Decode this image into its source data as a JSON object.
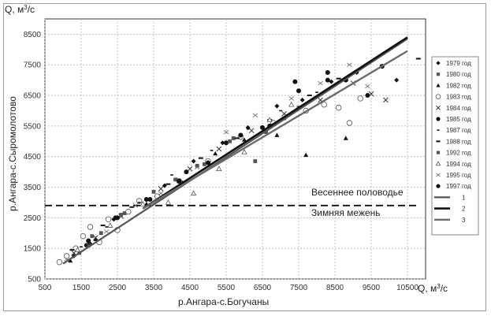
{
  "chart_data": {
    "type": "scatter",
    "ylabel_top": "Q, м³/с",
    "xlabel_right": "Q, м³/с",
    "ylabel_side": "р.Ангара-с.Сыромолотово",
    "xlabel_bottom": "р.Ангара-с.Богучаны",
    "xlim": [
      500,
      11000
    ],
    "ylim": [
      500,
      9000
    ],
    "x_ticks": [
      "500",
      "1500",
      "2500",
      "3500",
      "4500",
      "5500",
      "6500",
      "7500",
      "8500",
      "9500",
      "10500"
    ],
    "y_ticks": [
      "500",
      "1500",
      "2500",
      "3500",
      "4500",
      "5500",
      "6500",
      "7500",
      "8500"
    ],
    "threshold": {
      "y": 2900,
      "label_above": "Весеннее половодье",
      "label_below": "Зимняя межень"
    },
    "grid": "dashed",
    "legend_position": "right",
    "series": [
      {
        "name": "1979 год",
        "marker": "diamond-filled",
        "x": [
          1300,
          1750,
          2400,
          3800,
          4600,
          5400,
          6100,
          6900,
          7600,
          8400,
          9100,
          10200
        ],
        "y": [
          1250,
          1650,
          2450,
          3550,
          4350,
          4950,
          5450,
          6150,
          6350,
          6950,
          7250,
          7000
        ]
      },
      {
        "name": "1980 год",
        "marker": "square-filled",
        "x": [
          1450,
          2050,
          2700,
          4100,
          4900,
          5700,
          6300,
          7100
        ],
        "y": [
          1350,
          2000,
          2650,
          3750,
          4250,
          5100,
          4350,
          5750
        ]
      },
      {
        "name": "1982 год",
        "marker": "triangle-filled",
        "x": [
          1200,
          1900,
          3300,
          4300,
          5200,
          6000,
          6900,
          7700,
          8800
        ],
        "y": [
          1100,
          1800,
          2950,
          3650,
          4600,
          5050,
          5200,
          4550,
          5100
        ]
      },
      {
        "name": "1983 год",
        "marker": "circle-open",
        "x": [
          900,
          1100,
          1350,
          1550,
          1750,
          2000,
          2250,
          2500,
          2800,
          3100,
          3600,
          4200,
          5000,
          5900,
          6800,
          7700,
          8200,
          8600,
          8900,
          9200
        ],
        "y": [
          1050,
          1250,
          1500,
          1900,
          2200,
          1700,
          2450,
          2100,
          2700,
          3050,
          3200,
          3700,
          4350,
          5150,
          5600,
          6000,
          6200,
          6100,
          5600,
          6400
        ]
      },
      {
        "name": "1984 год",
        "marker": "cross",
        "x": [
          1300,
          1900,
          2600,
          3700,
          4500,
          5300,
          6200,
          7100,
          8100,
          9000,
          9500,
          9900
        ],
        "y": [
          1350,
          1850,
          2550,
          3450,
          4100,
          4750,
          5350,
          5900,
          6350,
          6900,
          6550,
          6350
        ]
      },
      {
        "name": "1985 год",
        "marker": "circle-filled",
        "x": [
          1650,
          2450,
          3400,
          4400,
          5500,
          6500,
          7400,
          8300,
          8800,
          9400,
          9800
        ],
        "y": [
          1600,
          2500,
          3100,
          4000,
          4950,
          5450,
          6950,
          7250,
          7000,
          6500,
          7450
        ]
      },
      {
        "name": "1987 год",
        "marker": "dash-small",
        "x": [
          1500,
          2200,
          3100,
          4000,
          5100,
          6100,
          7000,
          8000
        ],
        "y": [
          1550,
          2200,
          3000,
          3900,
          4700,
          5400,
          6000,
          6600
        ]
      },
      {
        "name": "1988 год",
        "marker": "dash",
        "x": [
          1250,
          2100,
          2900,
          3900,
          4800,
          5800,
          6700,
          7800,
          8600,
          10800
        ],
        "y": [
          1450,
          2250,
          2850,
          3600,
          4450,
          5100,
          5700,
          6500,
          7050,
          7700
        ]
      },
      {
        "name": "1992 год",
        "marker": "square-filled",
        "x": [
          1800,
          2600,
          3500,
          4700,
          5600,
          6600,
          7500
        ],
        "y": [
          1900,
          2600,
          3350,
          4200,
          5000,
          5300,
          6100
        ]
      },
      {
        "name": "1994 год",
        "marker": "triangle-open",
        "x": [
          1400,
          2300,
          3200,
          3900,
          4600,
          5300,
          6000,
          6700,
          7300
        ],
        "y": [
          1450,
          2250,
          2950,
          3000,
          3300,
          4100,
          4650,
          5700,
          6200
        ]
      },
      {
        "name": "1995 год",
        "marker": "x",
        "x": [
          1100,
          1700,
          2200,
          3000,
          3700,
          4700,
          5500,
          6300,
          7300,
          8100,
          8900,
          9400
        ],
        "y": [
          1150,
          1600,
          2050,
          2900,
          3300,
          4150,
          5300,
          5850,
          6400,
          6900,
          7500,
          6800
        ]
      },
      {
        "name": "1997 год",
        "marker": "circle-filled",
        "x": [
          1700,
          2500,
          3300,
          4200,
          5000,
          5900,
          6700,
          7500,
          8300
        ],
        "y": [
          1750,
          2500,
          3100,
          3700,
          4300,
          5200,
          5500,
          6650,
          7000
        ]
      }
    ],
    "lines": [
      {
        "name": "1",
        "color": "#555555",
        "x": [
          1000,
          10500
        ],
        "y": [
          1000,
          8350
        ]
      },
      {
        "name": "2",
        "color": "#111111",
        "x": [
          3200,
          10500
        ],
        "y": [
          2800,
          8400
        ]
      },
      {
        "name": "3",
        "color": "#6b6b6b",
        "x": [
          3200,
          10500
        ],
        "y": [
          2800,
          7950
        ]
      }
    ]
  }
}
